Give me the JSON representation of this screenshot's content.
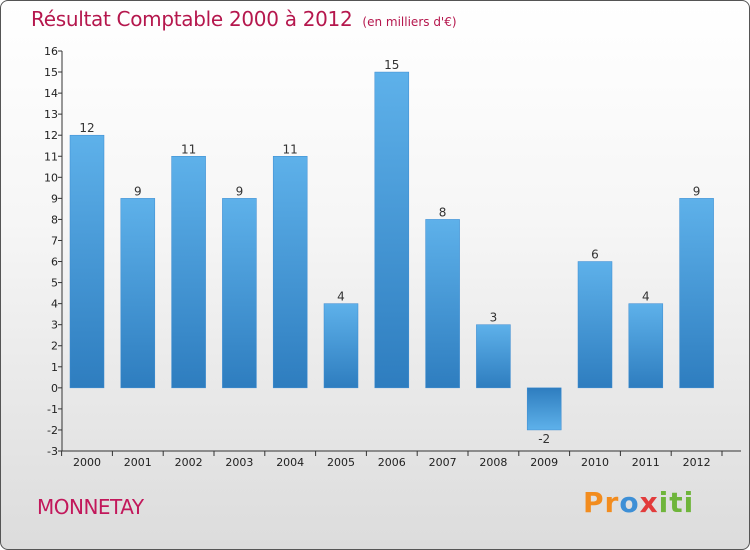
{
  "header": {
    "title": "Résultat Comptable 2000 à 2012",
    "unit": "(en milliers d'€)"
  },
  "footer": {
    "commune": "MONNETAY",
    "logo_text": "Proxiti"
  },
  "colors": {
    "title": "#b5174d",
    "bar_light": "#5eb1ea",
    "bar_dark": "#2e7dbf"
  },
  "chart_data": {
    "type": "bar",
    "title": "Résultat Comptable 2000 à 2012",
    "subtitle": "(en milliers d'€)",
    "xlabel": "",
    "ylabel": "",
    "categories": [
      "2000",
      "2001",
      "2002",
      "2003",
      "2004",
      "2005",
      "2006",
      "2007",
      "2008",
      "2009",
      "2010",
      "2011",
      "2012"
    ],
    "values": [
      12,
      9,
      11,
      9,
      11,
      4,
      15,
      8,
      3,
      -2,
      6,
      4,
      9
    ],
    "ylim": [
      -3,
      16
    ],
    "yticks": [
      -3,
      -2,
      -1,
      0,
      1,
      2,
      3,
      4,
      5,
      6,
      7,
      8,
      9,
      10,
      11,
      12,
      13,
      14,
      15,
      16
    ],
    "grid": false,
    "legend": "none"
  }
}
